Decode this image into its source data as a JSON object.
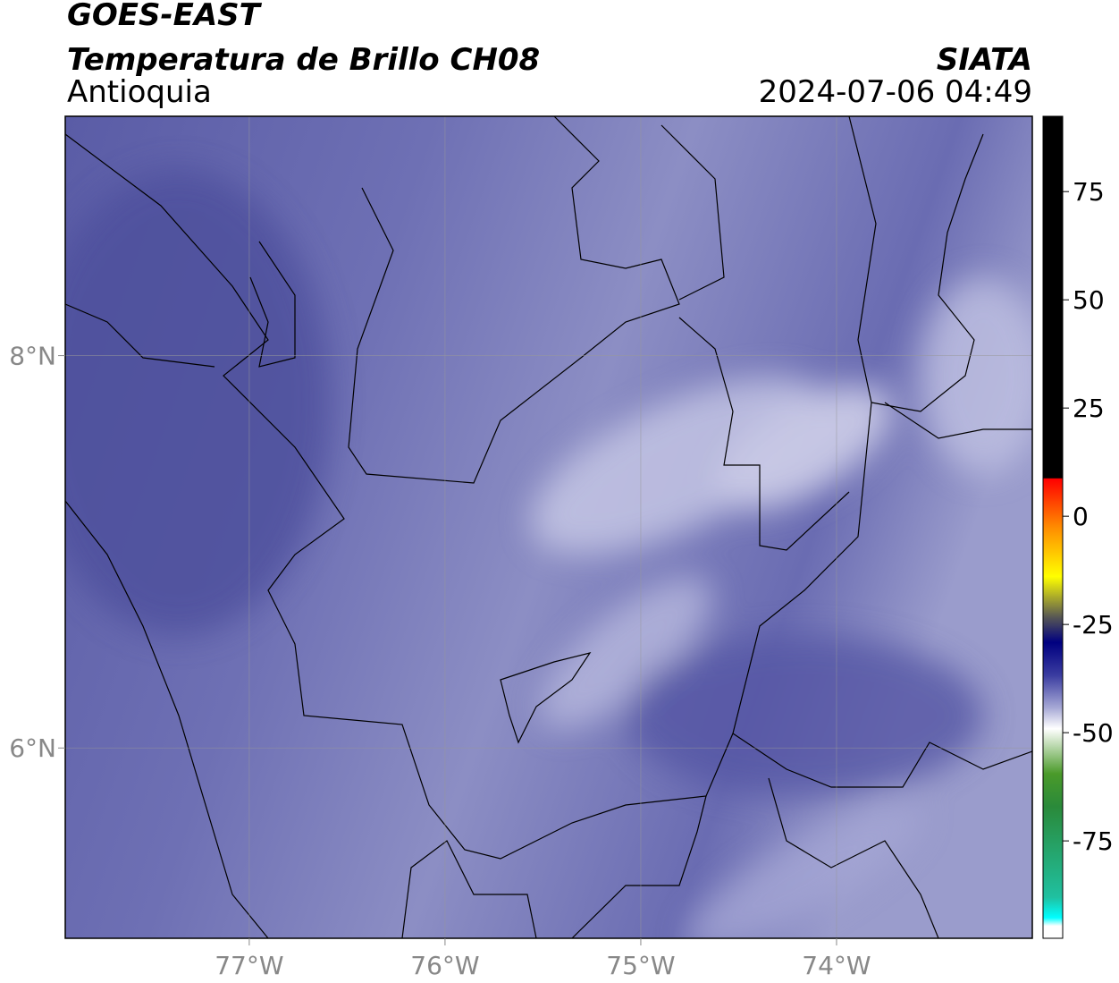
{
  "header": {
    "title": "GOES-EAST",
    "subtitle": "Temperatura de Brillo CH08",
    "region": "Antioquia",
    "source": "SIATA",
    "datetime": "2024-07-06 04:49"
  },
  "map": {
    "xlim": [
      -77.94,
      -73.0
    ],
    "ylim": [
      5.03,
      9.22
    ],
    "xticks": [
      {
        "value": -77,
        "label": "77°W"
      },
      {
        "value": -76,
        "label": "76°W"
      },
      {
        "value": -75,
        "label": "75°W"
      },
      {
        "value": -74,
        "label": "74°W"
      }
    ],
    "yticks": [
      {
        "value": 8,
        "label": "8°N"
      },
      {
        "value": 6,
        "label": "6°N"
      }
    ]
  },
  "colorbar": {
    "lim": [
      -97.5,
      92.4
    ],
    "ticks": [
      75,
      50,
      25,
      0,
      -25,
      -50,
      -75
    ]
  }
}
